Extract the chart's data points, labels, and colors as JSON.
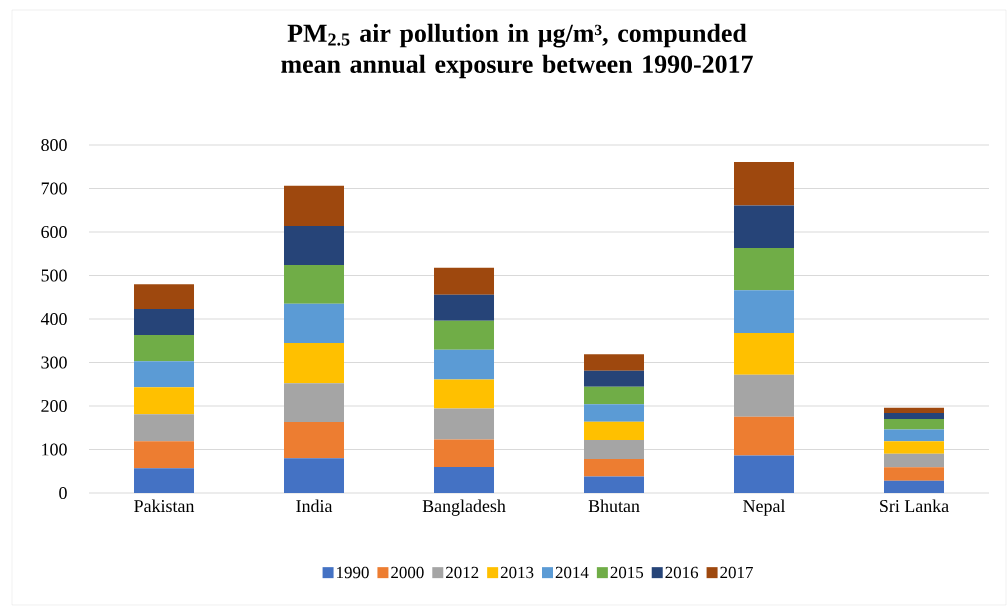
{
  "chart_data": {
    "type": "bar",
    "title": "PM$_{2.5}$ air pollution in µg/m³, compunded mean annual exposure between 1990-2017",
    "categories": [
      "Pakistan",
      "India",
      "Bangladesh",
      "Bhutan",
      "Nepal",
      "Sri Lanka"
    ],
    "stacked": true,
    "ylim": [
      0,
      800
    ],
    "yticks": [
      0,
      100,
      200,
      300,
      400,
      500,
      600,
      700,
      800
    ],
    "grid": "y",
    "legend": "bottom",
    "series": [
      {
        "name": "1990",
        "color": "#4472c4",
        "values": [
          57,
          80,
          60,
          38,
          86,
          28
        ]
      },
      {
        "name": "2000",
        "color": "#ed7d31",
        "values": [
          62,
          83,
          63,
          40,
          89,
          31
        ]
      },
      {
        "name": "2012",
        "color": "#a5a5a5",
        "values": [
          62,
          89,
          71,
          44,
          97,
          31
        ]
      },
      {
        "name": "2013",
        "color": "#ffc000",
        "values": [
          62,
          93,
          67,
          42,
          96,
          29
        ]
      },
      {
        "name": "2014",
        "color": "#5b9bd5",
        "values": [
          60,
          90,
          68,
          40,
          98,
          27
        ]
      },
      {
        "name": "2015",
        "color": "#70ad47",
        "values": [
          60,
          89,
          67,
          40,
          97,
          24
        ]
      },
      {
        "name": "2016",
        "color": "#264478",
        "values": [
          60,
          90,
          60,
          37,
          98,
          14
        ]
      },
      {
        "name": "2017",
        "color": "#9e480e",
        "values": [
          57,
          92,
          62,
          38,
          100,
          12
        ]
      }
    ]
  }
}
